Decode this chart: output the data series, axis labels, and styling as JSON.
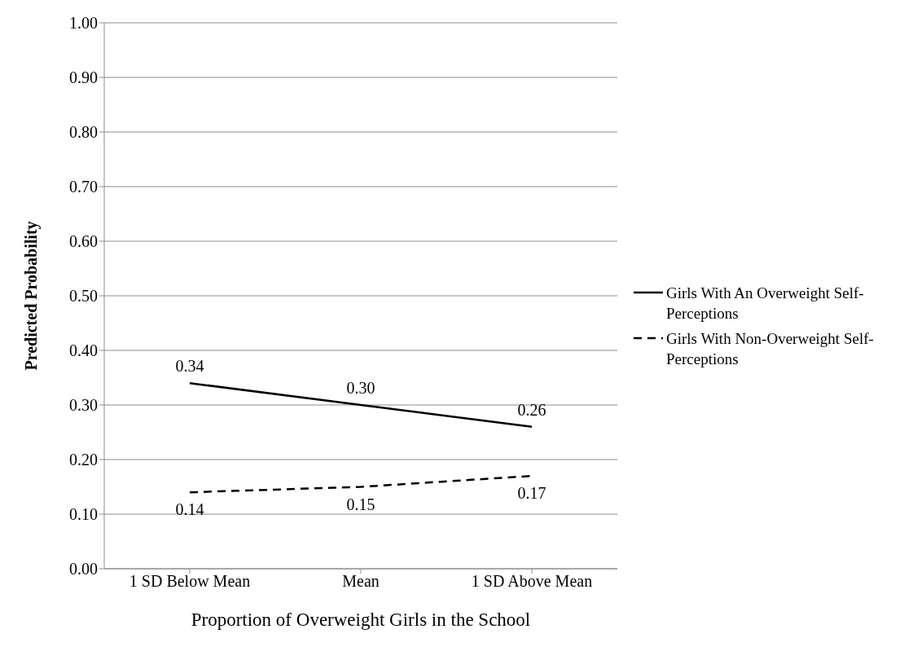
{
  "chart_data": {
    "type": "line",
    "xlabel": "Proportion of Overweight Girls in the School",
    "ylabel": "Predicted Probability",
    "categories": [
      "1 SD Below Mean",
      "Mean",
      "1 SD Above Mean"
    ],
    "series": [
      {
        "name": "Girls With An Overweight Self-Perceptions",
        "color": "#000000",
        "line_style": "solid",
        "values": [
          0.34,
          0.3,
          0.26
        ],
        "value_labels": [
          "0.34",
          "0.30",
          "0.26"
        ]
      },
      {
        "name": "Girls With Non-Overweight Self-Perceptions",
        "color": "#000000",
        "line_style": "dashed",
        "values": [
          0.14,
          0.15,
          0.17
        ],
        "value_labels": [
          "0.14",
          "0.15",
          "0.17"
        ]
      }
    ],
    "ylim": [
      0,
      1
    ],
    "yticks": [
      {
        "value": 0,
        "label": "0.00"
      },
      {
        "value": 0.1,
        "label": "0.10"
      },
      {
        "value": 0.2,
        "label": "0.20"
      },
      {
        "value": 0.3,
        "label": "0.30"
      },
      {
        "value": 0.4,
        "label": "0.40"
      },
      {
        "value": 0.5,
        "label": "0.50"
      },
      {
        "value": 0.6,
        "label": "0.60"
      },
      {
        "value": 0.7,
        "label": "0.70"
      },
      {
        "value": 0.8,
        "label": "0.80"
      },
      {
        "value": 0.9,
        "label": "0.90"
      },
      {
        "value": 1,
        "label": "1.00"
      }
    ],
    "grid": "y",
    "legend": "right",
    "marker": "none"
  }
}
